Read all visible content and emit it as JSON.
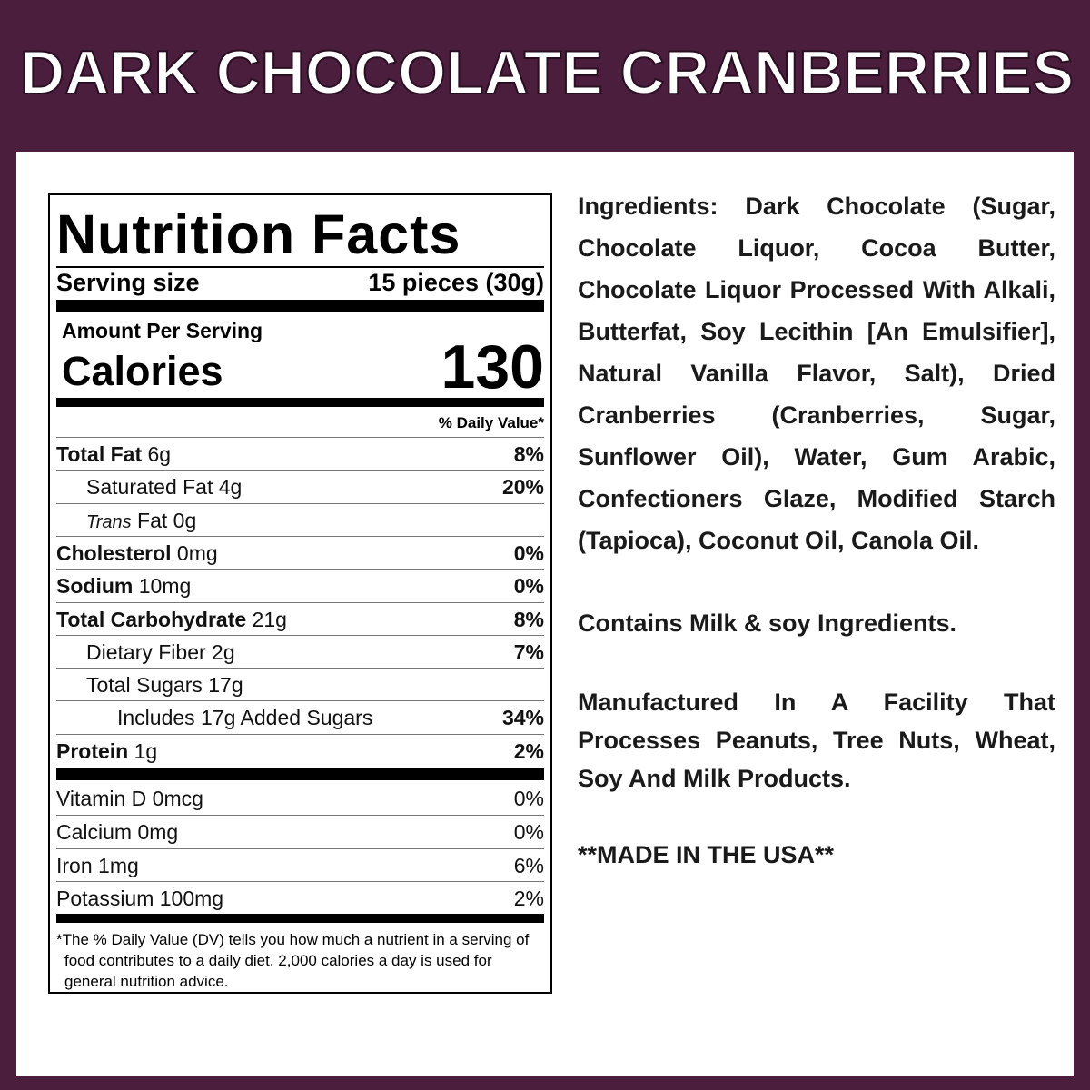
{
  "header": {
    "title": "DARK CHOCOLATE CRANBERRIES"
  },
  "nutrition": {
    "title": "Nutrition Facts",
    "serving_size_label": "Serving size",
    "serving_size": "15 pieces (30g)",
    "amount_per_serving": "Amount Per Serving",
    "calories_label": "Calories",
    "calories": 130,
    "daily_value_header": "% Daily Value*",
    "rows": [
      {
        "name": "Total Fat",
        "amount": "6g",
        "dv": "8%"
      },
      {
        "name": "Saturated Fat",
        "amount": "4g",
        "dv": "20%"
      },
      {
        "prefix": "Trans",
        "name": "Fat",
        "amount": "0g"
      },
      {
        "name": "Cholesterol",
        "amount": "0mg",
        "dv": "0%"
      },
      {
        "name": "Sodium",
        "amount": "10mg",
        "dv": "0%"
      },
      {
        "name": "Total Carbohydrate",
        "amount": "21g",
        "dv": "8%"
      },
      {
        "name": "Dietary Fiber",
        "amount": "2g",
        "dv": "7%"
      },
      {
        "name": "Total Sugars",
        "amount": "17g"
      },
      {
        "name": "Includes 17g Added Sugars",
        "dv": "34%"
      },
      {
        "name": "Protein",
        "amount": "1g",
        "dv": "2%"
      }
    ],
    "vitamins": [
      {
        "name": "Vitamin D",
        "amount": "0mcg",
        "dv": "0%"
      },
      {
        "name": "Calcium",
        "amount": "0mg",
        "dv": "0%"
      },
      {
        "name": "Iron",
        "amount": "1mg",
        "dv": "6%"
      },
      {
        "name": "Potassium",
        "amount": "100mg",
        "dv": "2%"
      }
    ],
    "footnote": "*The % Daily Value (DV) tells you how much a nutrient in a serving of food contributes to a daily diet. 2,000 calories a day is used for general nutrition advice."
  },
  "ingredients": {
    "text": "Ingredients: Dark Chocolate (Sugar, Chocolate Liquor, Cocoa Butter, Chocolate Liquor Processed With Alkali, Butterfat, Soy Lecithin [An Emulsifier], Natural Vanilla Flavor, Salt), Dried Cranberries (Cranberries, Sugar, Sunflower Oil), Water, Gum Arabic, Confectioners Glaze, Modified Starch (Tapioca), Coconut Oil, Canola Oil.",
    "contains": "Contains Milk & soy Ingredients.",
    "facility": "Manufactured In A Facility That Processes Peanuts, Tree Nuts, Wheat, Soy And Milk Products.",
    "origin": "**MADE IN THE USA**"
  }
}
